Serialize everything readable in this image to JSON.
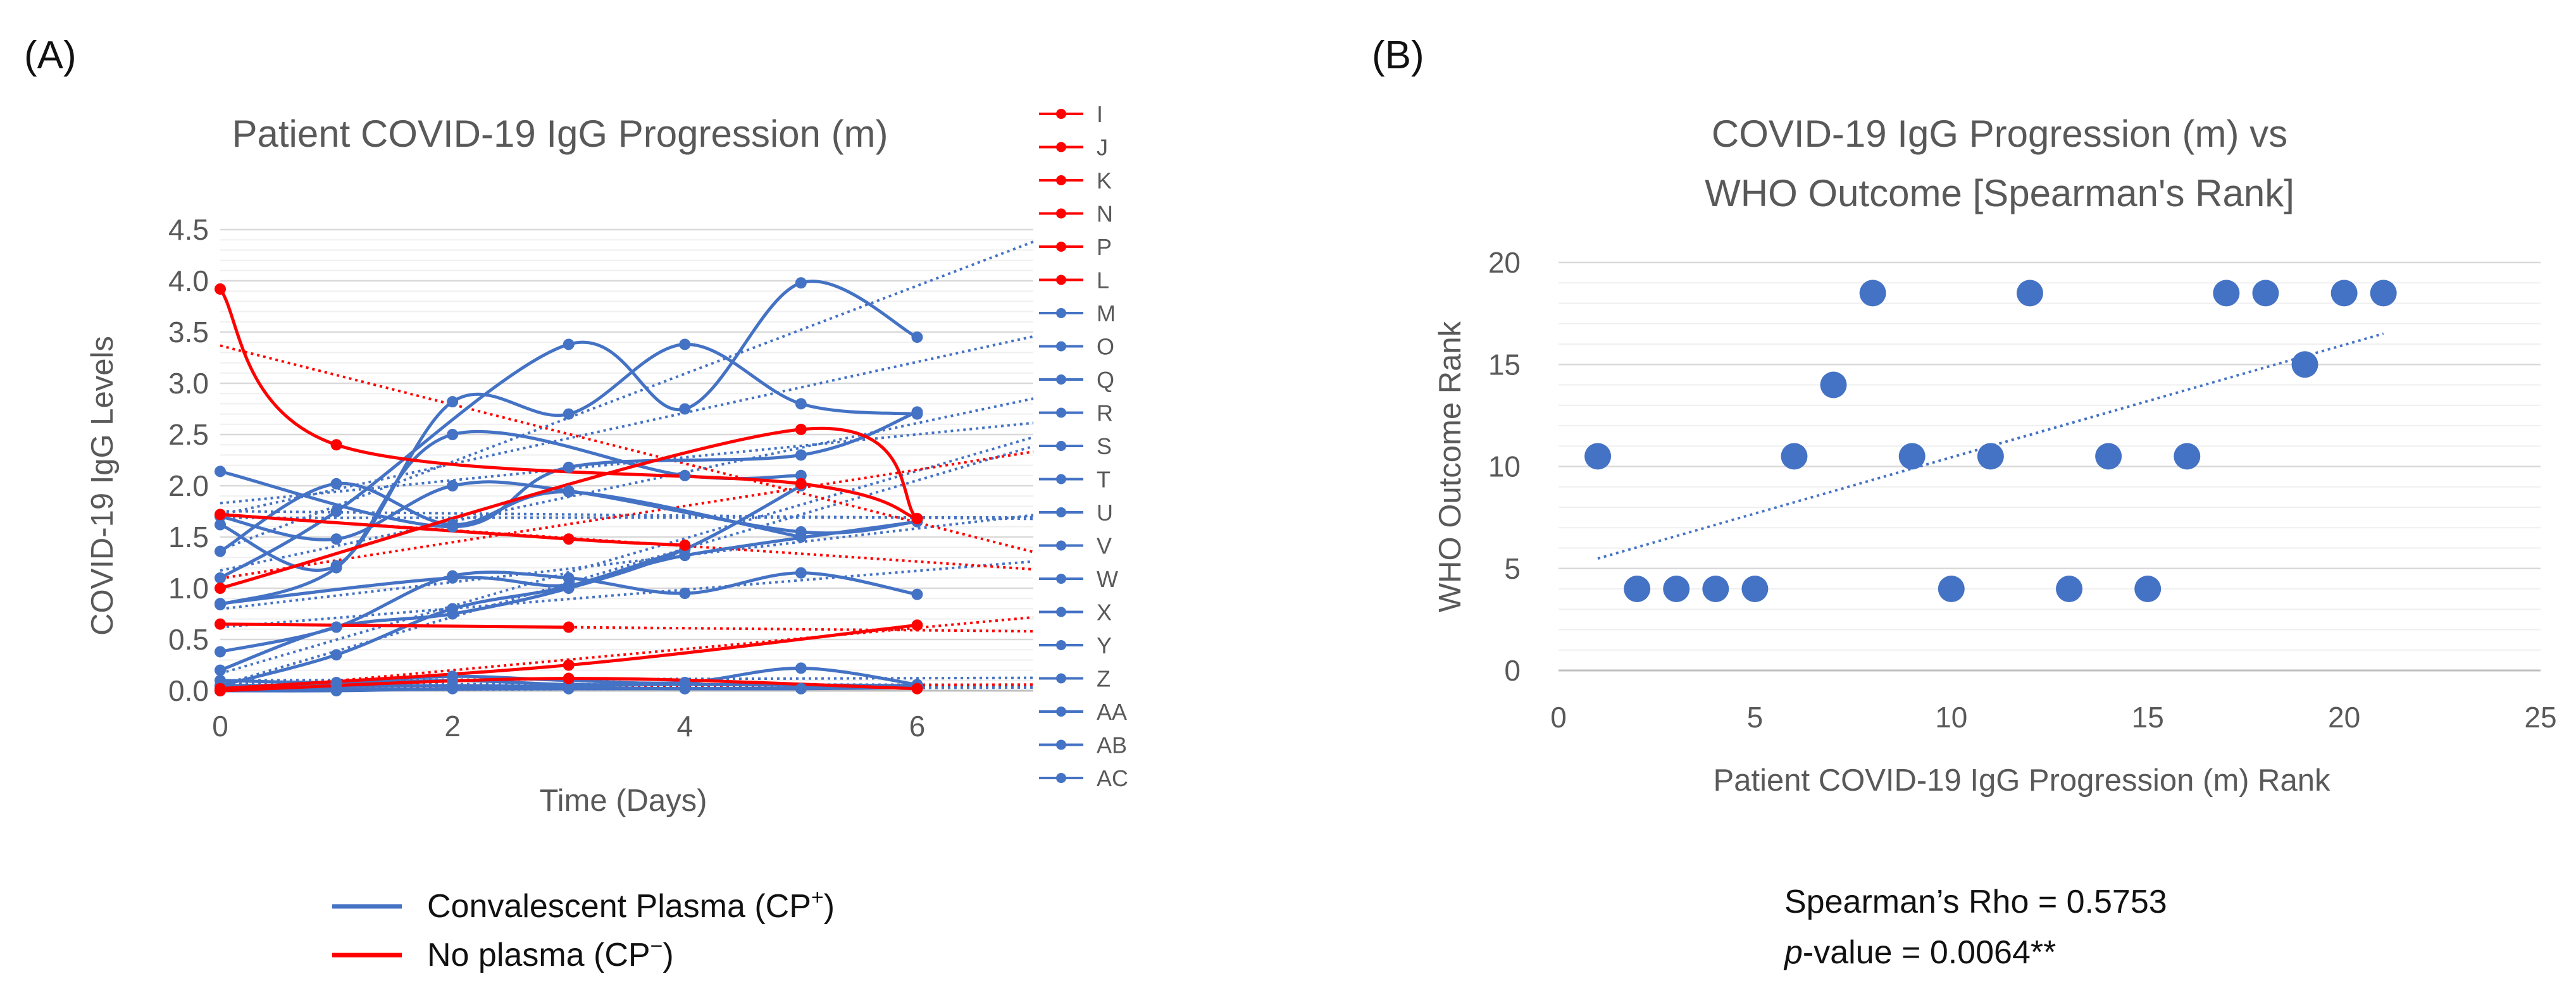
{
  "figure": {
    "label_a": "(A)",
    "label_b": "(B)"
  },
  "colors": {
    "cp_plus": "#4472c4",
    "cp_minus": "#ff0000",
    "gridline": "#d9d9d9",
    "text": "#595959"
  },
  "legend": {
    "cp_plus": {
      "label": "Convalescent Plasma (CP",
      "sup": "+",
      "close": ")"
    },
    "cp_minus": {
      "label": "No plasma (CP",
      "sup": "−",
      "close": ")"
    }
  },
  "stats": {
    "rho_line": "Spearman’s Rho = 0.5753",
    "p_italic": "p",
    "p_rest": "-value = 0.0064**"
  },
  "chart_data": [
    {
      "type": "line",
      "title": "Patient COVID-19 IgG Progression (m)",
      "xlabel": "Time (Days)",
      "ylabel": "COVID-19 IgG Levels",
      "xlim": [
        0,
        7
      ],
      "ylim": [
        0,
        4.5
      ],
      "xticks": [
        0,
        2,
        4,
        6
      ],
      "yticks": [
        0.0,
        0.5,
        1.0,
        1.5,
        2.0,
        2.5,
        3.0,
        3.5,
        4.0,
        4.5
      ],
      "ytick_labels": [
        "0.0",
        "0.5",
        "1.0",
        "1.5",
        "2.0",
        "2.5",
        "3.0",
        "3.5",
        "4.0",
        "4.5"
      ],
      "trendline_style": "dotted, extended to x = 7",
      "series": [
        {
          "name": "I",
          "group": "CP-",
          "x": [
            0,
            1,
            5,
            6
          ],
          "y": [
            3.92,
            2.4,
            2.02,
            1.68
          ]
        },
        {
          "name": "J",
          "group": "CP-",
          "x": [
            0,
            5,
            6
          ],
          "y": [
            1.0,
            2.55,
            1.68
          ]
        },
        {
          "name": "K",
          "group": "CP-",
          "x": [
            0,
            3,
            4
          ],
          "y": [
            1.72,
            1.48,
            1.42
          ]
        },
        {
          "name": "N",
          "group": "CP-",
          "x": [
            0,
            3
          ],
          "y": [
            0.65,
            0.62
          ]
        },
        {
          "name": "P",
          "group": "CP-",
          "x": [
            0,
            3,
            6
          ],
          "y": [
            0.02,
            0.25,
            0.64
          ]
        },
        {
          "name": "L",
          "group": "CP-",
          "x": [
            0,
            3,
            6
          ],
          "y": [
            0.0,
            0.12,
            0.02
          ]
        },
        {
          "name": "M",
          "group": "CP+",
          "x": [
            0,
            1,
            3,
            4,
            5,
            6
          ],
          "y": [
            1.1,
            1.75,
            3.38,
            2.75,
            3.98,
            3.45
          ]
        },
        {
          "name": "O",
          "group": "CP+",
          "x": [
            0,
            1,
            2,
            3,
            4,
            5,
            6
          ],
          "y": [
            1.62,
            1.22,
            2.82,
            2.7,
            3.38,
            2.8,
            2.7
          ]
        },
        {
          "name": "Q",
          "group": "CP+",
          "x": [
            0,
            2,
            3,
            5,
            6
          ],
          "y": [
            2.14,
            1.6,
            2.18,
            2.3,
            2.72
          ]
        },
        {
          "name": "R",
          "group": "CP+",
          "x": [
            0,
            1,
            2,
            3,
            5
          ],
          "y": [
            1.36,
            2.02,
            1.62,
            1.94,
            1.5
          ]
        },
        {
          "name": "S",
          "group": "CP+",
          "x": [
            0,
            1,
            2,
            3,
            5,
            6
          ],
          "y": [
            1.7,
            1.48,
            2.0,
            1.95,
            1.55,
            1.65
          ]
        },
        {
          "name": "T",
          "group": "CP+",
          "x": [
            0,
            1,
            2,
            4,
            5
          ],
          "y": [
            0.84,
            1.2,
            2.5,
            2.1,
            2.1
          ]
        },
        {
          "name": "U",
          "group": "CP+",
          "x": [
            0,
            2,
            3,
            4,
            6
          ],
          "y": [
            0.85,
            1.1,
            1.03,
            1.32,
            1.65
          ]
        },
        {
          "name": "V",
          "group": "CP+",
          "x": [
            0,
            1,
            2,
            3,
            4,
            5,
            6
          ],
          "y": [
            0.38,
            0.62,
            1.12,
            1.1,
            0.95,
            1.15,
            0.94
          ]
        },
        {
          "name": "W",
          "group": "CP+",
          "x": [
            0,
            1,
            2,
            3,
            4,
            5
          ],
          "y": [
            0.2,
            0.62,
            0.75,
            1.0,
            1.38,
            2.0
          ]
        },
        {
          "name": "X",
          "group": "CP+",
          "x": [
            0,
            1,
            2,
            3,
            4
          ],
          "y": [
            0.05,
            0.35,
            0.8,
            1.02,
            1.38
          ]
        },
        {
          "name": "Y",
          "group": "CP+",
          "x": [
            0,
            1,
            2,
            3,
            4,
            5,
            6
          ],
          "y": [
            0.1,
            0.08,
            0.14,
            0.1,
            0.08,
            0.22,
            0.06
          ]
        },
        {
          "name": "Z",
          "group": "CP+",
          "x": [
            0,
            1,
            2,
            3,
            4,
            6
          ],
          "y": [
            0.05,
            0.06,
            0.1,
            0.06,
            0.06,
            0.05
          ]
        },
        {
          "name": "AA",
          "group": "CP+",
          "x": [
            0,
            1,
            2,
            3,
            4,
            5,
            6
          ],
          "y": [
            0.0,
            0.0,
            0.02,
            0.02,
            0.02,
            0.02,
            0.03
          ]
        },
        {
          "name": "AB",
          "group": "CP+",
          "x": [
            0,
            2,
            4,
            6
          ],
          "y": [
            0.02,
            0.05,
            0.02,
            0.04
          ]
        },
        {
          "name": "AC",
          "group": "CP+",
          "x": [
            0,
            1,
            3,
            5
          ],
          "y": [
            0.0,
            0.01,
            0.02,
            0.02
          ]
        }
      ]
    },
    {
      "type": "scatter",
      "title": [
        "COVID-19 IgG Progression (m) vs",
        "WHO Outcome [Spearman's Rank]"
      ],
      "xlabel": "Patient COVID-19 IgG Progression (m) Rank",
      "ylabel": "WHO Outcome Rank",
      "xlim": [
        0,
        25
      ],
      "ylim": [
        0,
        20
      ],
      "xticks": [
        0,
        5,
        10,
        15,
        20,
        25
      ],
      "yticks": [
        0,
        5,
        10,
        15,
        20
      ],
      "trendline": "linear, dotted",
      "points": [
        [
          1,
          10.5
        ],
        [
          2,
          4
        ],
        [
          3,
          4
        ],
        [
          4,
          4
        ],
        [
          5,
          4
        ],
        [
          6,
          10.5
        ],
        [
          7,
          14
        ],
        [
          8,
          18.5
        ],
        [
          9,
          10.5
        ],
        [
          10,
          4
        ],
        [
          11,
          10.5
        ],
        [
          12,
          18.5
        ],
        [
          13,
          4
        ],
        [
          14,
          10.5
        ],
        [
          15,
          4
        ],
        [
          16,
          10.5
        ],
        [
          17,
          18.5
        ],
        [
          18,
          18.5
        ],
        [
          19,
          15
        ],
        [
          20,
          18.5
        ],
        [
          21,
          18.5
        ]
      ]
    }
  ]
}
